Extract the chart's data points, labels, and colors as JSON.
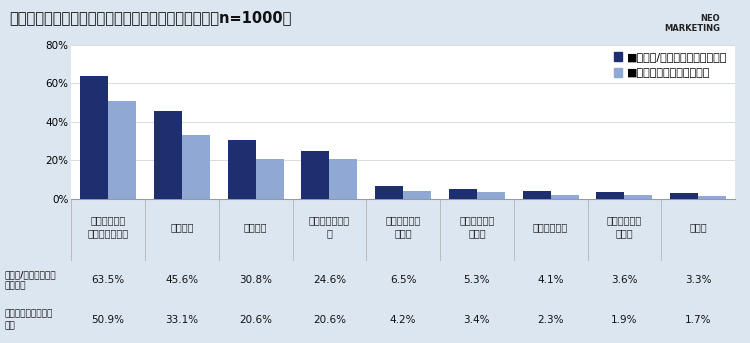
{
  "title": "新型コロナウイルス感染拡大後の働き方（全員回答　n=1000）",
  "categories": [
    "在宅勤務（リ\nモートワーク）",
    "時差出勤",
    "時短勤務",
    "フレックスタイ\nム",
    "サテライトオ\nフィス",
    "ハイブリッド\nワーク",
    "ジョブ型雇用",
    "バーチャルオ\nフィス",
    "その他"
  ],
  "series1_label": "■勤め先/経営先で実施したもの",
  "series2_label": "■現在も実施しているもの",
  "series1_values": [
    63.5,
    45.6,
    30.8,
    24.6,
    6.5,
    5.3,
    4.1,
    3.6,
    3.3
  ],
  "series2_values": [
    50.9,
    33.1,
    20.6,
    20.6,
    4.2,
    3.4,
    2.3,
    1.9,
    1.7
  ],
  "series1_color": "#1e2f6f",
  "series2_color": "#8fa8d4",
  "bg_color": "#dce6f1",
  "plot_bg_color": "#ffffff",
  "table_label_bg": "#c5d5e8",
  "table_data_bg": "#ffffff",
  "table_row1_label": "勤め先/経営先で実施\nしたもの",
  "table_row2_label": "現在も実施している\nもの",
  "ylim": [
    0,
    80
  ],
  "yticks": [
    0,
    20,
    40,
    60,
    80
  ],
  "bar_width": 0.38,
  "title_fontsize": 10.5,
  "axis_fontsize": 7.5,
  "legend_fontsize": 8
}
